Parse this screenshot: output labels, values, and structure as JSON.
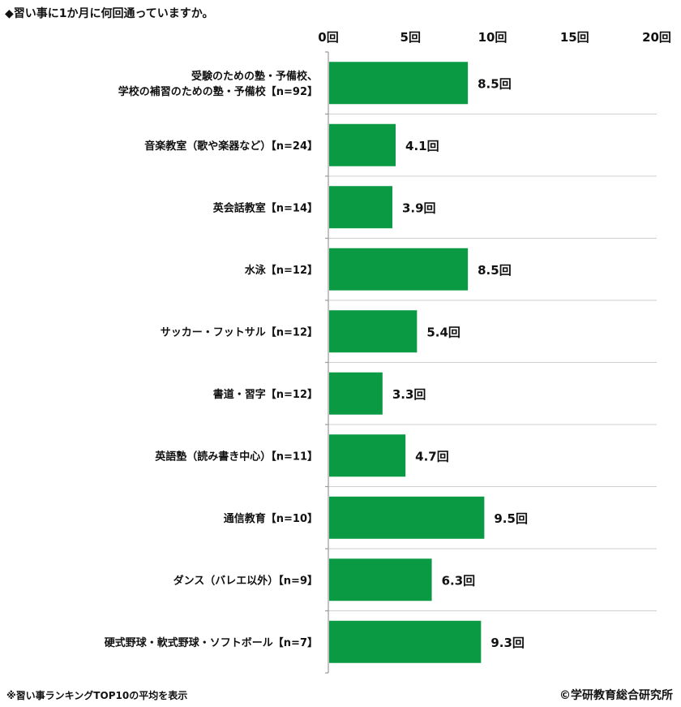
{
  "title": "◆習い事に1か月に何回通っていますか。",
  "footnote": "※習い事ランキングTOP10の平均を表示",
  "credit": "©学研教育総合研究所",
  "chart_data": {
    "type": "bar",
    "orientation": "horizontal",
    "categories": [
      [
        "受験のための塾・予備校、",
        "学校の補習のための塾・予備校【n=92】"
      ],
      [
        "音楽教室（歌や楽器など）【n=24】"
      ],
      [
        "英会話教室【n=14】"
      ],
      [
        "水泳【n=12】"
      ],
      [
        "サッカー・フットサル【n=12】"
      ],
      [
        "書道・習字【n=12】"
      ],
      [
        "英語塾（読み書き中心）【n=11】"
      ],
      [
        "通信教育【n=10】"
      ],
      [
        "ダンス（バレエ以外）【n=9】"
      ],
      [
        "硬式野球・軟式野球・ソフトボール【n=7】"
      ]
    ],
    "values": [
      8.5,
      4.1,
      3.9,
      8.5,
      5.4,
      3.3,
      4.7,
      9.5,
      6.3,
      9.3
    ],
    "value_labels": [
      "8.5回",
      "4.1回",
      "3.9回",
      "8.5回",
      "5.4回",
      "3.3回",
      "4.7回",
      "9.5回",
      "6.3回",
      "9.3回"
    ],
    "xlim": [
      0,
      20
    ],
    "xticks": [
      0,
      5,
      10,
      15,
      20
    ],
    "xtick_labels": [
      "0回",
      "5回",
      "10回",
      "15回",
      "20回"
    ],
    "axis_position": "top",
    "bar_color": "#0a9a44",
    "grid_color": "#cfcfcf",
    "grid": "horizontal separators between categories",
    "legend": "none"
  }
}
